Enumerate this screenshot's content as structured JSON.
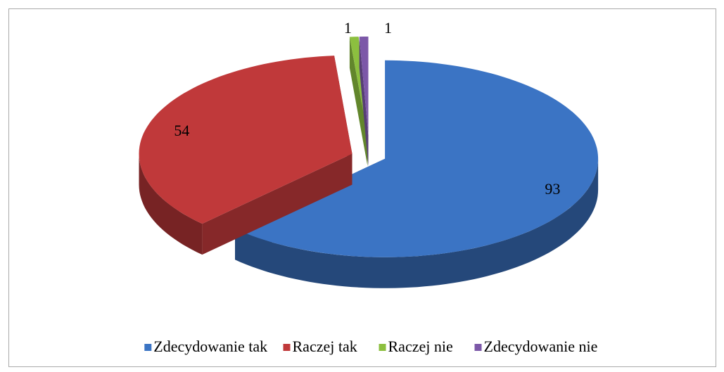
{
  "chart_data": {
    "type": "pie",
    "categories": [
      "Zdecydowanie tak",
      "Raczej tak",
      "Raczej nie",
      "Zdecydowanie nie"
    ],
    "values": [
      93,
      54,
      1,
      1
    ],
    "colors": [
      "#3b74c4",
      "#c0393a",
      "#8cbf3f",
      "#7c58a8"
    ],
    "legend": "bottom"
  }
}
